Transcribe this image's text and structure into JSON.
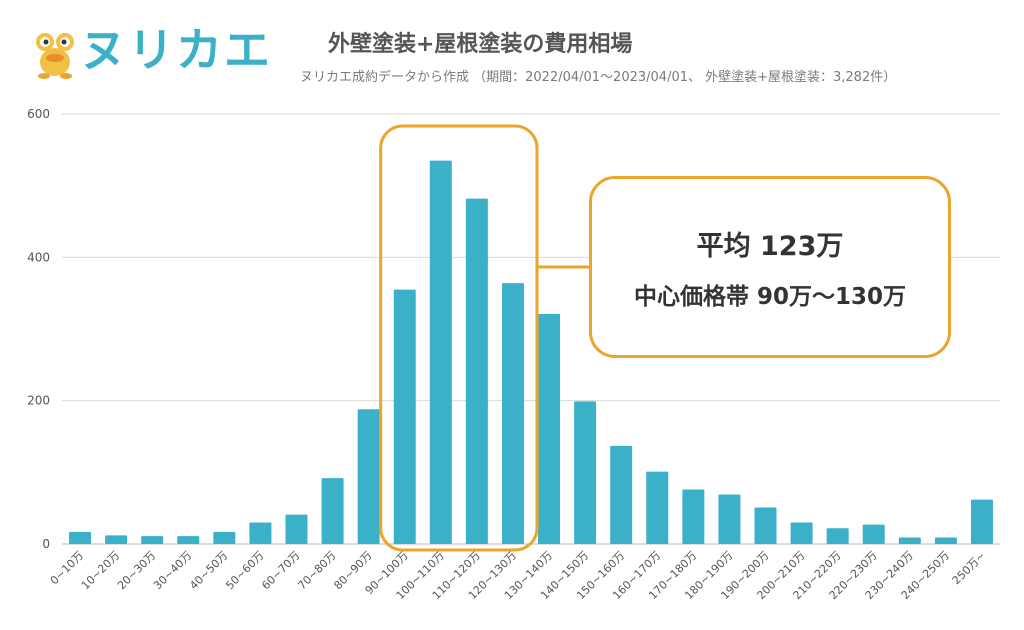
{
  "brand": {
    "logo_text": "ヌリカエ",
    "mascot_icon": "frog-mascot-icon"
  },
  "colors": {
    "bar": "#3bb0c9",
    "highlight": "#e9a52c",
    "grid": "#d9d9d9",
    "text": "#555555"
  },
  "chart_data": {
    "type": "bar",
    "title": "外壁塗装+屋根塗装の費用相場",
    "subtitle": "ヌリカエ成約データから作成 （期間：2022/04/01〜2023/04/01、 外壁塗装+屋根塗装：3,282件）",
    "xlabel": "",
    "ylabel": "",
    "ylim": [
      0,
      600
    ],
    "yticks": [
      0,
      200,
      400,
      600
    ],
    "grid": true,
    "categories": [
      "0~10万",
      "10~20万",
      "20~30万",
      "30~40万",
      "40~50万",
      "50~60万",
      "60~70万",
      "70~80万",
      "80~90万",
      "90~100万",
      "100~110万",
      "110~120万",
      "120~130万",
      "130~140万",
      "140~150万",
      "150~160万",
      "160~170万",
      "170~180万",
      "180~190万",
      "190~200万",
      "200~210万",
      "210~220万",
      "220~230万",
      "230~240万",
      "240~250万",
      "250万~"
    ],
    "values": [
      17,
      12,
      11,
      11,
      17,
      30,
      41,
      92,
      188,
      355,
      535,
      482,
      364,
      321,
      199,
      137,
      101,
      76,
      69,
      51,
      30,
      22,
      27,
      9,
      9,
      62
    ],
    "highlight_range": [
      "90~100万",
      "120~130万"
    ],
    "annotation": {
      "line1": "平均 123万",
      "line2": "中心価格帯 90万～130万"
    }
  }
}
